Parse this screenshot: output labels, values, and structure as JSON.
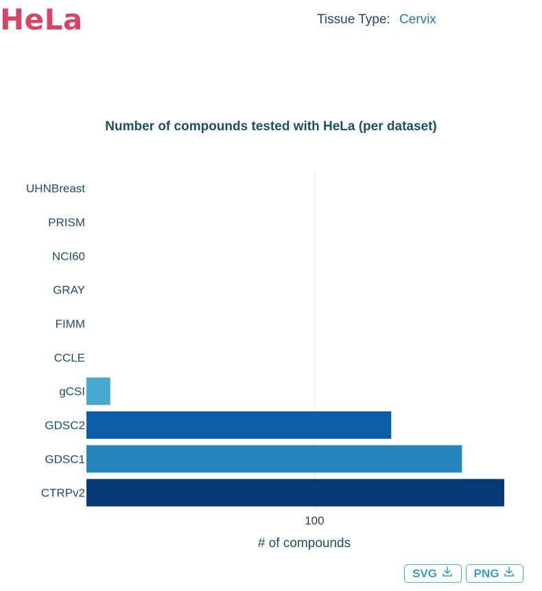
{
  "header": {
    "cell_line": "HeLa",
    "tissue_label": "Tissue Type:",
    "tissue_value": "Cervix"
  },
  "buttons": {
    "svg_label": "SVG",
    "png_label": "PNG",
    "download_icon": "download-icon"
  },
  "colors": {
    "title_red": "#d64566",
    "tissue_link": "#2d73a8",
    "button_border": "#4aa8c8"
  },
  "chart_data": {
    "type": "bar",
    "orientation": "horizontal",
    "title": "Number of compounds tested with HeLa (per dataset)",
    "xlabel": "# of compounds",
    "ylabel": "",
    "x_scale": "log",
    "xlim": [
      41,
      210
    ],
    "x_ticks": [
      100
    ],
    "grid": true,
    "categories": [
      "UHNBreast",
      "PRISM",
      "NCI60",
      "GRAY",
      "FIMM",
      "CCLE",
      "gCSI",
      "GDSC2",
      "GDSC1",
      "CTRPv2"
    ],
    "values": [
      0,
      0,
      0,
      0,
      0,
      0,
      45,
      135,
      178,
      210
    ],
    "bar_colors": [
      "#45a9d0",
      "#45a9d0",
      "#45a9d0",
      "#45a9d0",
      "#45a9d0",
      "#45a9d0",
      "#45a9d0",
      "#0b5ea6",
      "#2684bb",
      "#083a78"
    ]
  }
}
